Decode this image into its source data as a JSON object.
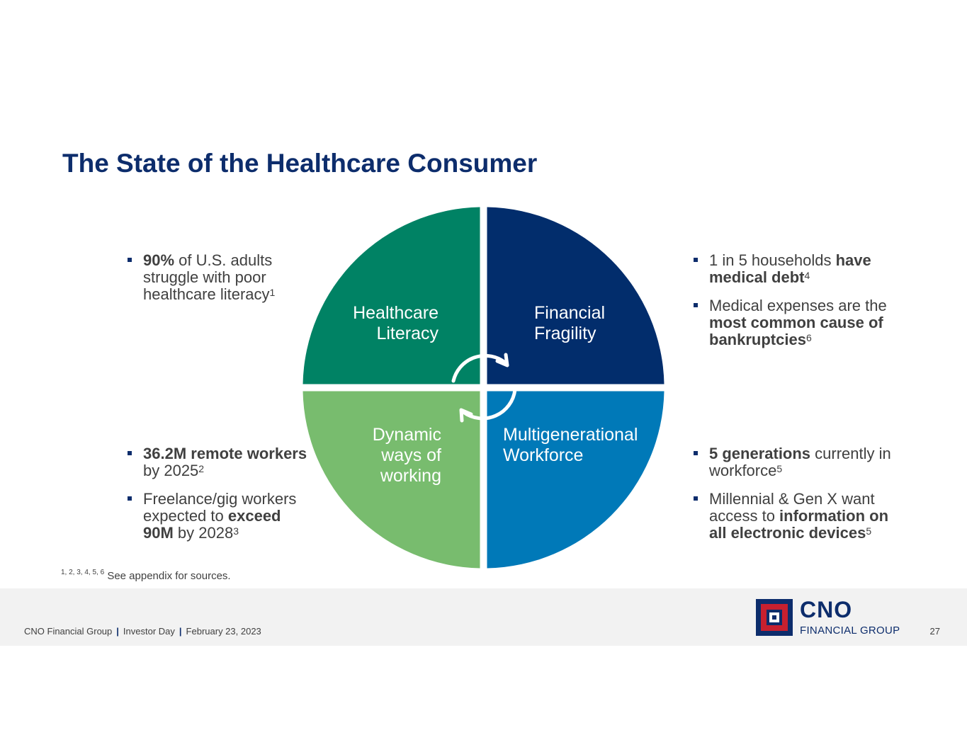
{
  "title": "The State of the Healthcare Consumer",
  "quadrants": {
    "top_left": {
      "label": "Healthcare\nLiteracy",
      "color": "#008264"
    },
    "top_right": {
      "label": "Financial\nFragility",
      "color": "#022d6c"
    },
    "bottom_left": {
      "label": "Dynamic\nways of\nworking",
      "color": "#78bc6e"
    },
    "bottom_right": {
      "label": "Multigenerational\nWorkforce",
      "color": "#0079b8"
    }
  },
  "icons": {
    "cycle": "circular-arrows-icon",
    "bullet": "square-bullet-icon"
  },
  "bullets_top_left": [
    [
      {
        "t": "90%",
        "b": true
      },
      {
        "t": " of U.S. adults struggle with poor healthcare literacy"
      },
      {
        "t": "1",
        "sup": true
      }
    ]
  ],
  "bullets_top_right": [
    [
      {
        "t": "1 in 5 households "
      },
      {
        "t": "have medical debt",
        "b": true
      },
      {
        "t": "4",
        "sup": true
      }
    ],
    [
      {
        "t": "Medical expenses are the "
      },
      {
        "t": "most common cause of bankruptcies",
        "b": true
      },
      {
        "t": "6",
        "sup": true
      }
    ]
  ],
  "bullets_bottom_left": [
    [
      {
        "t": "36.2M remote workers",
        "b": true
      },
      {
        "t": " by 2025"
      },
      {
        "t": "2",
        "sup": true
      }
    ],
    [
      {
        "t": "Freelance/gig workers expected to "
      },
      {
        "t": "exceed 90M",
        "b": true
      },
      {
        "t": " by 2028"
      },
      {
        "t": "3",
        "sup": true
      }
    ]
  ],
  "bullets_bottom_right": [
    [
      {
        "t": "5 generations",
        "b": true
      },
      {
        "t": " currently in workforce"
      },
      {
        "t": "5",
        "sup": true
      }
    ],
    [
      {
        "t": "Millennial & Gen X want access to "
      },
      {
        "t": "information on all electronic devices",
        "b": true
      },
      {
        "t": "5",
        "sup": true
      }
    ]
  ],
  "footnote": {
    "refs": "1, 2, 3, 4, 5, 6",
    "text": " See appendix for sources."
  },
  "footer": {
    "company": "CNO Financial Group",
    "event": "Investor Day",
    "date": "February 23, 2023",
    "page": "27"
  },
  "logo": {
    "name": "CNO",
    "subtitle": "FINANCIAL GROUP"
  }
}
